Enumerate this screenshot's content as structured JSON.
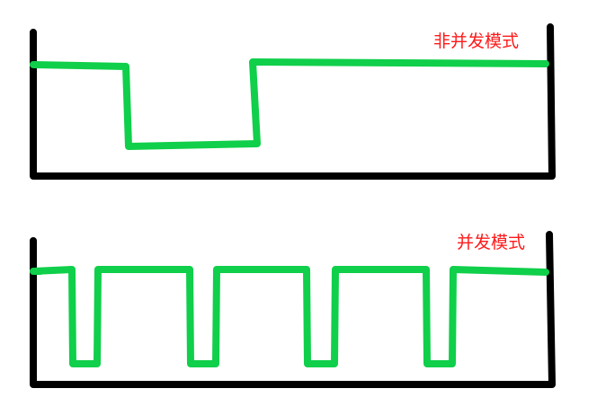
{
  "colors": {
    "axis": "#000000",
    "signal": "#10cf4a",
    "label": "#ff1a1a"
  },
  "panels": [
    {
      "id": "non-concurrent",
      "label": "非并发模式",
      "signal_levels": [
        "high",
        "low",
        "high"
      ]
    },
    {
      "id": "concurrent",
      "label": "并发模式",
      "signal_levels": [
        "high",
        "low",
        "high",
        "low",
        "high",
        "low",
        "high",
        "low",
        "high"
      ]
    }
  ]
}
